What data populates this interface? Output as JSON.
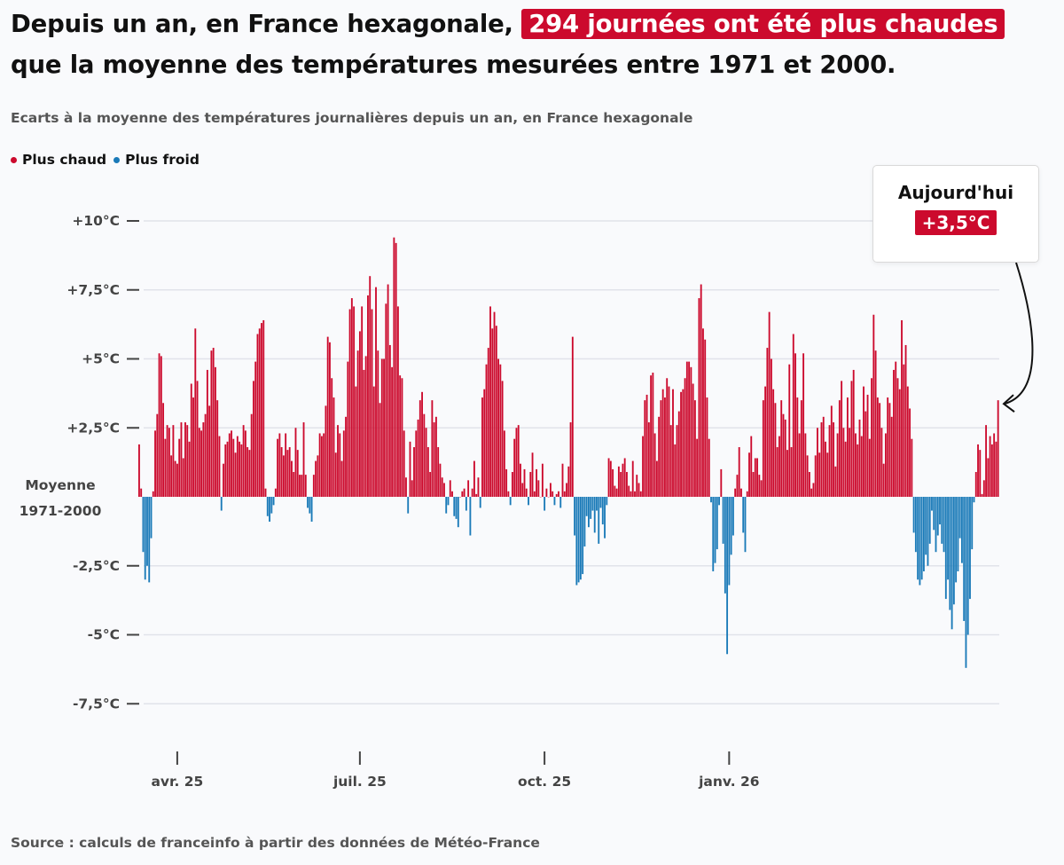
{
  "headline": {
    "before": "Depuis un an, en France hexagonale, ",
    "highlight": "294 journées ont été plus chaudes",
    "after": " que la moyenne des températures mesurées entre 1971 et 2000."
  },
  "subtitle": "Ecarts à la moyenne des températures journalières depuis un an, en France hexagonale",
  "legend": [
    {
      "label": "Plus chaud",
      "color": "#cc0a2d"
    },
    {
      "label": "Plus froid",
      "color": "#1a7ab8"
    }
  ],
  "callout": {
    "title": "Aujourd'hui",
    "value": "+3,5°C"
  },
  "source": "Source : calculs de franceinfo à partir des données de Météo-France",
  "chart_data": {
    "type": "bar",
    "title": "Ecarts à la moyenne des températures journalières depuis un an, en France hexagonale",
    "ylabel": "",
    "ylim": [
      -8.5,
      10.5
    ],
    "baseline_label": [
      "Moyenne",
      "1971-2000"
    ],
    "y_ticks": [
      {
        "value": 10,
        "label": "+10°C"
      },
      {
        "value": 7.5,
        "label": "+7,5°C"
      },
      {
        "value": 5,
        "label": "+5°C"
      },
      {
        "value": 2.5,
        "label": "+2,5°C"
      },
      {
        "value": -2.5,
        "label": "-2,5°C"
      },
      {
        "value": -5,
        "label": "-5°C"
      },
      {
        "value": -7.5,
        "label": "-7,5°C"
      }
    ],
    "x_ticks": [
      {
        "index": 19,
        "label": "avr. 25"
      },
      {
        "index": 110,
        "label": "juil. 25"
      },
      {
        "index": 202,
        "label": "oct. 25"
      },
      {
        "index": 294,
        "label": "janv. 26"
      }
    ],
    "colors": {
      "positive": "#cc0a2d",
      "negative": "#1a7ab8"
    },
    "values": [
      1.9,
      0.3,
      -2.0,
      -3.0,
      -2.5,
      -3.1,
      -1.5,
      0.2,
      2.4,
      3.0,
      5.2,
      5.1,
      3.4,
      2.1,
      2.6,
      2.5,
      1.5,
      2.6,
      1.3,
      1.2,
      2.1,
      2.7,
      1.4,
      2.7,
      2.6,
      2.0,
      4.1,
      3.6,
      6.1,
      4.2,
      2.5,
      2.4,
      2.7,
      3.0,
      4.6,
      3.3,
      5.3,
      5.4,
      4.7,
      3.5,
      2.2,
      -0.5,
      1.2,
      1.9,
      2.0,
      2.3,
      2.4,
      2.1,
      1.6,
      2.2,
      2.0,
      1.9,
      2.6,
      2.4,
      1.8,
      1.7,
      3.0,
      4.2,
      4.9,
      5.9,
      6.1,
      6.3,
      6.4,
      0.3,
      -0.7,
      -0.9,
      -0.6,
      -0.3,
      0.3,
      2.1,
      2.3,
      1.8,
      1.5,
      2.3,
      1.7,
      1.8,
      1.3,
      0.9,
      2.5,
      1.7,
      0.8,
      0.8,
      2.7,
      0.8,
      -0.4,
      -0.6,
      -0.9,
      0.8,
      1.3,
      1.5,
      2.3,
      2.2,
      2.3,
      3.3,
      5.8,
      5.6,
      4.3,
      3.6,
      1.6,
      2.6,
      2.3,
      1.3,
      2.4,
      2.9,
      4.9,
      6.8,
      7.2,
      6.9,
      4.0,
      5.3,
      6.0,
      6.9,
      4.6,
      5.1,
      7.3,
      8.0,
      6.8,
      4.0,
      7.6,
      5.3,
      3.4,
      5.0,
      5.0,
      7.0,
      7.7,
      5.5,
      4.7,
      9.4,
      9.2,
      6.9,
      4.4,
      4.3,
      2.4,
      0.7,
      -0.6,
      2.0,
      0.6,
      1.8,
      2.4,
      2.8,
      3.5,
      3.8,
      3.0,
      2.5,
      1.8,
      0.9,
      3.5,
      2.7,
      2.9,
      1.8,
      1.2,
      0.7,
      0.5,
      -0.6,
      -0.3,
      0.6,
      0.2,
      -0.7,
      -0.8,
      -1.1,
      0.0,
      0.2,
      0.3,
      -0.5,
      0.6,
      -1.4,
      0.3,
      1.3,
      0.1,
      0.7,
      -0.4,
      3.6,
      3.9,
      4.8,
      5.4,
      6.9,
      6.1,
      6.7,
      6.2,
      5.0,
      4.8,
      4.2,
      2.4,
      1.0,
      0.2,
      -0.3,
      0.9,
      2.1,
      2.5,
      2.6,
      1.2,
      0.5,
      1.0,
      0.3,
      -0.3,
      0.9,
      1.6,
      0.2,
      1.0,
      0.6,
      0.0,
      1.2,
      -0.5,
      0.3,
      0.0,
      0.5,
      0.2,
      -0.3,
      0.1,
      0.2,
      -0.4,
      1.2,
      0.2,
      0.5,
      1.1,
      2.7,
      5.8,
      -1.4,
      -3.2,
      -3.1,
      -3.0,
      -2.8,
      -1.8,
      -0.7,
      -1.1,
      -0.8,
      -0.5,
      -1.3,
      -0.5,
      -1.7,
      -0.4,
      -1.0,
      -1.5,
      -0.3,
      1.4,
      1.3,
      1.0,
      0.4,
      0.3,
      1.1,
      0.9,
      1.2,
      1.4,
      0.9,
      0.4,
      0.2,
      1.3,
      0.2,
      0.8,
      0.5,
      0.2,
      2.2,
      3.5,
      3.7,
      2.7,
      4.4,
      4.5,
      2.3,
      1.3,
      2.9,
      3.5,
      3.9,
      3.6,
      4.3,
      4.0,
      2.6,
      3.9,
      1.9,
      2.6,
      3.1,
      3.8,
      3.9,
      4.3,
      4.9,
      4.9,
      4.7,
      4.1,
      3.5,
      2.1,
      7.2,
      7.7,
      6.1,
      5.7,
      3.6,
      2.1,
      -0.2,
      -2.7,
      -2.4,
      -1.9,
      -0.3,
      1.0,
      -1.7,
      -3.5,
      -5.7,
      -3.2,
      -2.1,
      -1.4,
      0.3,
      0.8,
      1.8,
      0.3,
      -1.3,
      -2.0,
      0.2,
      1.6,
      2.2,
      0.9,
      1.4,
      1.4,
      0.8,
      0.6,
      3.5,
      4.0,
      5.4,
      6.7,
      5.0,
      3.9,
      3.4,
      1.8,
      2.2,
      3.5,
      3.0,
      2.8,
      1.7,
      4.8,
      1.8,
      5.9,
      5.2,
      3.6,
      2.3,
      3.5,
      5.2,
      2.3,
      1.5,
      0.9,
      0.3,
      0.5,
      1.5,
      2.5,
      1.6,
      2.7,
      2.9,
      2.0,
      1.6,
      2.6,
      3.3,
      2.7,
      1.1,
      2.3,
      3.5,
      4.2,
      2.5,
      2.0,
      3.6,
      2.5,
      4.2,
      4.6,
      2.3,
      1.9,
      2.8,
      2.2,
      4.0,
      3.1,
      3.7,
      2.1,
      4.3,
      6.6,
      5.3,
      3.6,
      3.4,
      2.5,
      1.2,
      2.3,
      3.6,
      3.4,
      2.9,
      4.6,
      4.9,
      4.3,
      3.9,
      6.4,
      4.8,
      5.5,
      4.0,
      3.2,
      2.1,
      -1.3,
      -2.0,
      -3.0,
      -3.2,
      -3.0,
      -2.7,
      -2.1,
      -2.5,
      -1.7,
      -0.5,
      -1.2,
      -2.0,
      -1.4,
      -1.0,
      -1.7,
      -2.0,
      -3.7,
      -3.0,
      -4.1,
      -4.8,
      -3.9,
      -3.1,
      -2.7,
      -1.5,
      -2.4,
      -4.5,
      -6.2,
      -5.0,
      -3.7,
      -1.9,
      -0.2,
      0.9,
      1.9,
      1.7,
      0.1,
      0.6,
      2.6,
      1.4,
      2.2,
      1.9,
      2.3,
      2.0,
      3.5
    ]
  }
}
